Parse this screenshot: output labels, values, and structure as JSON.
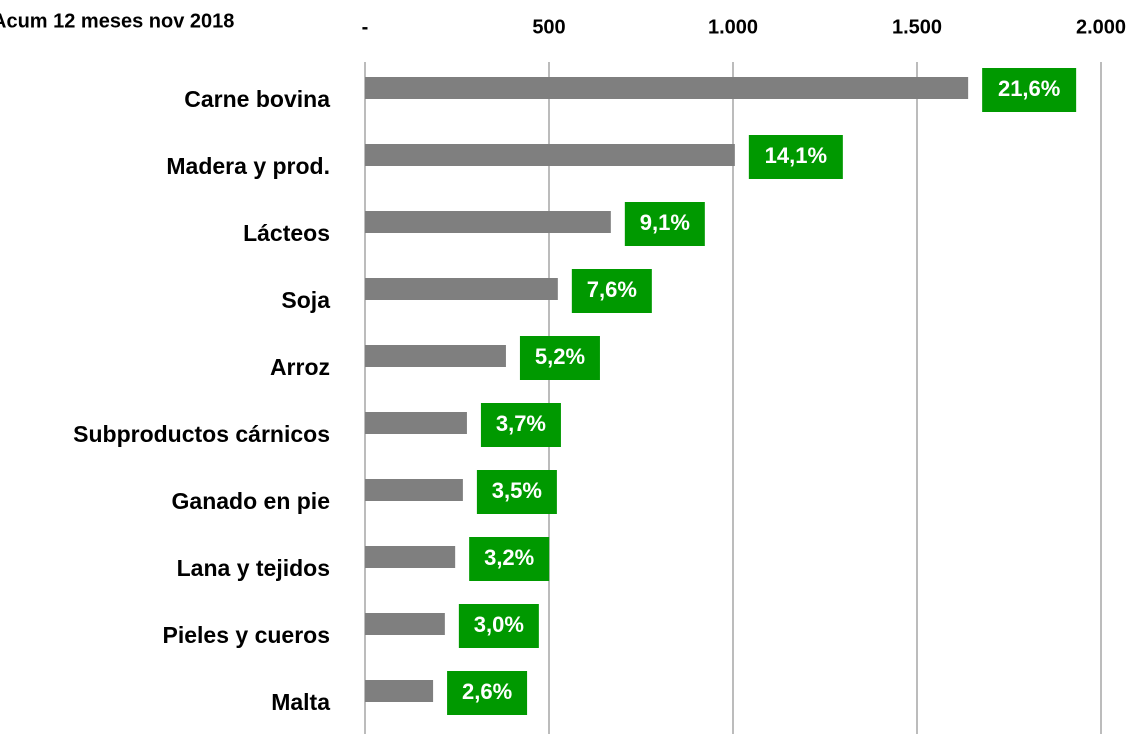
{
  "chart_data": {
    "type": "hbar",
    "title": "Acum 12 meses nov 2018",
    "categories": [
      "Carne bovina",
      "Madera y prod.",
      "Lácteos",
      "Soja",
      "Arroz",
      "Subproductos cárnicos",
      "Ganado en pie",
      "Lana y tejidos",
      "Pieles y cueros",
      "Malta"
    ],
    "values": [
      1639,
      1005,
      668,
      524,
      383,
      277,
      266,
      245,
      217,
      185
    ],
    "share_labels": [
      "21,6%",
      "14,1%",
      "9,1%",
      "7,6%",
      "5,2%",
      "3,7%",
      "3,5%",
      "3,2%",
      "3,0%",
      "2,6%"
    ],
    "color": "#7f7f7f",
    "label_color": "#009900",
    "xlim": [
      0,
      2000
    ],
    "xticks": [
      {
        "value": 0,
        "label": "-"
      },
      500,
      {
        "value": 1000,
        "label": "1.000"
      },
      {
        "value": 1500,
        "label": "1.500"
      },
      {
        "value": 2000,
        "label": "2.000"
      }
    ],
    "grid": true
  }
}
